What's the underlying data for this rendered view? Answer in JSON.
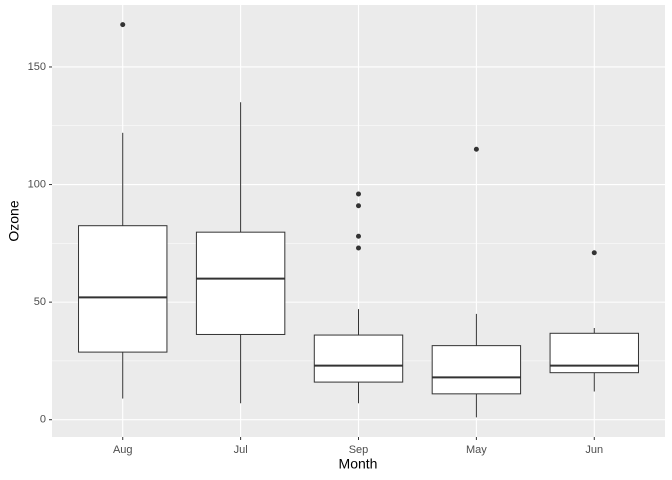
{
  "chart_data": {
    "type": "boxplot",
    "x_label": "Month",
    "y_label": "Ozone",
    "categories": [
      "Aug",
      "Jul",
      "Sep",
      "May",
      "Jun"
    ],
    "boxes": [
      {
        "min": 9,
        "q1": 28.75,
        "median": 52,
        "q3": 82.5,
        "max": 122,
        "outliers": [
          168
        ]
      },
      {
        "min": 7,
        "q1": 36.25,
        "median": 60,
        "q3": 79.75,
        "max": 135,
        "outliers": []
      },
      {
        "min": 7,
        "q1": 16,
        "median": 23,
        "q3": 36,
        "max": 47,
        "outliers": [
          73,
          78,
          91,
          96
        ]
      },
      {
        "min": 1,
        "q1": 11,
        "median": 18,
        "q3": 31.5,
        "max": 45,
        "outliers": [
          115
        ]
      },
      {
        "min": 12,
        "q1": 20,
        "median": 23,
        "q3": 36.75,
        "max": 39,
        "outliers": [
          71
        ]
      }
    ],
    "color": "#333333",
    "fill": "#ffffff",
    "ylim": [
      -7.35,
      176.35
    ],
    "yticks": [
      0,
      50,
      100,
      150
    ],
    "grid": true
  }
}
